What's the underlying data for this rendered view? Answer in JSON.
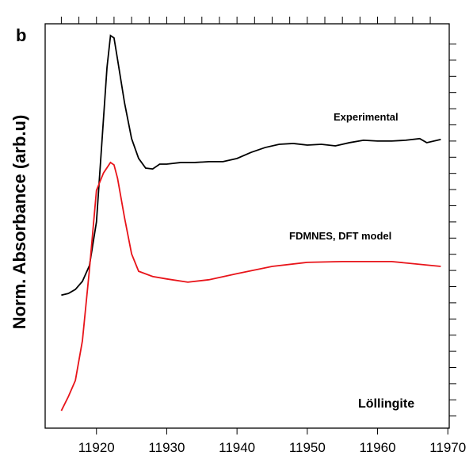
{
  "chart_data": {
    "type": "line",
    "panel_label": "b",
    "ylabel": "Norm. Absorbance (arb.u)",
    "annotations": [
      "Experimental",
      "FDMNES, DFT model",
      "Löllingite"
    ],
    "xlim": [
      11912.7,
      11970.2
    ],
    "ylim": [
      0,
      1
    ],
    "xticks": [
      11920,
      11930,
      11940,
      11950,
      11960,
      11970
    ],
    "x2ticks": [
      11915,
      11917.5,
      11920,
      11922.5,
      11925,
      11927.5,
      11930,
      11932.5,
      11935,
      11937.5,
      11940,
      11942.5,
      11945,
      11947.5,
      11950,
      11952.5,
      11955,
      11957.5,
      11960,
      11962.5,
      11965,
      11967.5
    ],
    "y2ticks": [
      0.03,
      0.07,
      0.11,
      0.15,
      0.19,
      0.23,
      0.27,
      0.31,
      0.35,
      0.39,
      0.43,
      0.47,
      0.51,
      0.55,
      0.59,
      0.63,
      0.67,
      0.71,
      0.75,
      0.79,
      0.83,
      0.87,
      0.91,
      0.95
    ],
    "series": [
      {
        "name": "Experimental",
        "color": "#000000",
        "x": [
          11915,
          11916,
          11917,
          11918,
          11919,
          11920,
          11921,
          11921.5,
          11922,
          11922.5,
          11923,
          11924,
          11925,
          11926,
          11927,
          11928,
          11929,
          11930,
          11932,
          11934,
          11936,
          11938,
          11940,
          11942,
          11944,
          11946,
          11948,
          11950,
          11952,
          11954,
          11956,
          11958,
          11960,
          11962,
          11964,
          11966,
          11967,
          11969
        ],
        "values": [
          0.329,
          0.333,
          0.343,
          0.363,
          0.402,
          0.51,
          0.765,
          0.892,
          0.971,
          0.965,
          0.912,
          0.804,
          0.716,
          0.667,
          0.643,
          0.641,
          0.653,
          0.653,
          0.657,
          0.657,
          0.659,
          0.659,
          0.667,
          0.682,
          0.694,
          0.702,
          0.704,
          0.7,
          0.702,
          0.698,
          0.706,
          0.712,
          0.71,
          0.71,
          0.712,
          0.716,
          0.706,
          0.714
        ]
      },
      {
        "name": "FDMNES, DFT model",
        "color": "#e8141a",
        "x": [
          11915,
          11916,
          11917,
          11918,
          11919,
          11920,
          11921,
          11922,
          11922.5,
          11923,
          11924,
          11925,
          11926,
          11928,
          11930,
          11933,
          11936,
          11940,
          11945,
          11950,
          11955,
          11962,
          11969
        ],
        "values": [
          0.043,
          0.078,
          0.118,
          0.216,
          0.392,
          0.588,
          0.631,
          0.657,
          0.651,
          0.618,
          0.52,
          0.431,
          0.388,
          0.375,
          0.369,
          0.361,
          0.367,
          0.382,
          0.4,
          0.41,
          0.412,
          0.412,
          0.4
        ]
      }
    ]
  }
}
